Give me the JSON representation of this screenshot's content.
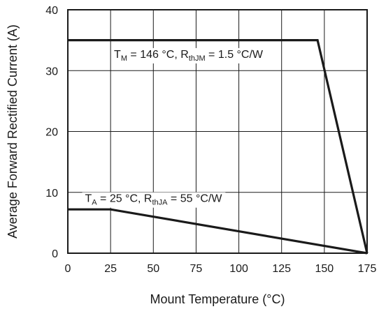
{
  "chart_data": {
    "type": "line",
    "xlabel": "Mount Temperature (°C)",
    "ylabel": "Average Forward Rectified Current (A)",
    "xlim": [
      0,
      175
    ],
    "ylim": [
      0,
      40
    ],
    "x_ticks": [
      0,
      25,
      50,
      75,
      100,
      125,
      150,
      175
    ],
    "y_ticks": [
      0,
      10,
      20,
      30,
      40
    ],
    "grid": true,
    "legend": "none",
    "line_color": "#1a1a1a",
    "grid_color": "#1a1a1a",
    "series": [
      {
        "x": [
          0,
          146,
          175
        ],
        "y": [
          35,
          35,
          0
        ]
      },
      {
        "x": [
          0,
          25,
          175
        ],
        "y": [
          7.2,
          7.2,
          0
        ]
      }
    ],
    "annotations": [
      {
        "parts": [
          {
            "text": "T",
            "sub": false
          },
          {
            "text": "M",
            "sub": true
          },
          {
            "text": " = 146 °C, R",
            "sub": false
          },
          {
            "text": "thJM",
            "sub": true
          },
          {
            "text": " = 1.5 °C/W",
            "sub": false
          }
        ],
        "x": 27,
        "y": 32.1
      },
      {
        "parts": [
          {
            "text": "T",
            "sub": false
          },
          {
            "text": "A",
            "sub": true
          },
          {
            "text": " = 25 °C, R",
            "sub": false
          },
          {
            "text": "thJA",
            "sub": true
          },
          {
            "text": " = 55 °C/W",
            "sub": false
          }
        ],
        "x": 10,
        "y": 8.4
      }
    ]
  }
}
